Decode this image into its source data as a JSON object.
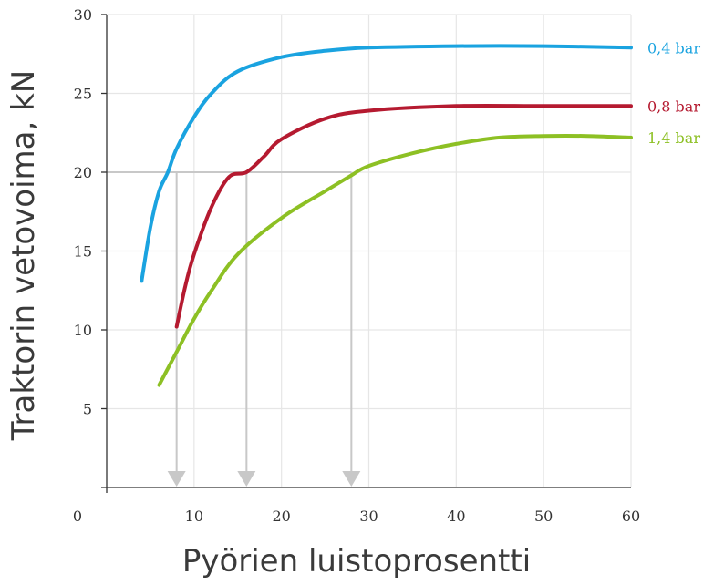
{
  "chart_data": {
    "type": "line",
    "title": "",
    "xlabel": "Pyörien luistoprosentti",
    "ylabel": "Traktorin vetovoima, kN",
    "xlim": [
      0,
      60
    ],
    "ylim": [
      0,
      30
    ],
    "x_ticks": [
      10,
      20,
      30,
      40,
      50,
      60
    ],
    "x_tick_labels": [
      "10",
      "20",
      "30",
      "40",
      "50",
      "60"
    ],
    "origin_label": "0",
    "y_ticks": [
      5,
      10,
      15,
      20,
      25,
      30
    ],
    "y_tick_labels": [
      "5",
      "10",
      "15",
      "20",
      "25",
      "30"
    ],
    "grid": true,
    "series": [
      {
        "name": "0,4 bar",
        "color": "#1aa3e0",
        "points": [
          [
            4,
            13.1
          ],
          [
            5,
            16.5
          ],
          [
            6,
            18.8
          ],
          [
            7,
            20.0
          ],
          [
            8,
            21.5
          ],
          [
            10,
            23.5
          ],
          [
            12,
            25.0
          ],
          [
            15,
            26.4
          ],
          [
            20,
            27.3
          ],
          [
            25,
            27.7
          ],
          [
            30,
            27.9
          ],
          [
            40,
            28.0
          ],
          [
            50,
            28.0
          ],
          [
            60,
            27.9
          ]
        ]
      },
      {
        "name": "0,8 bar",
        "color": "#b51a30",
        "points": [
          [
            8,
            10.2
          ],
          [
            9,
            12.8
          ],
          [
            10,
            14.8
          ],
          [
            12,
            17.8
          ],
          [
            14,
            19.7
          ],
          [
            16,
            20.0
          ],
          [
            18,
            21.0
          ],
          [
            20,
            22.1
          ],
          [
            25,
            23.4
          ],
          [
            30,
            23.9
          ],
          [
            40,
            24.2
          ],
          [
            50,
            24.2
          ],
          [
            60,
            24.2
          ]
        ]
      },
      {
        "name": "1,4 bar",
        "color": "#8dc024",
        "points": [
          [
            6,
            6.5
          ],
          [
            8,
            8.6
          ],
          [
            10,
            10.7
          ],
          [
            12,
            12.5
          ],
          [
            15,
            14.8
          ],
          [
            20,
            17.1
          ],
          [
            25,
            18.8
          ],
          [
            28,
            19.8
          ],
          [
            30,
            20.4
          ],
          [
            35,
            21.2
          ],
          [
            40,
            21.8
          ],
          [
            45,
            22.2
          ],
          [
            50,
            22.3
          ],
          [
            55,
            22.3
          ],
          [
            60,
            22.2
          ]
        ]
      }
    ],
    "reference": {
      "y": 20,
      "x_values": [
        8,
        16,
        28
      ],
      "color": "#c8c8c8"
    }
  }
}
